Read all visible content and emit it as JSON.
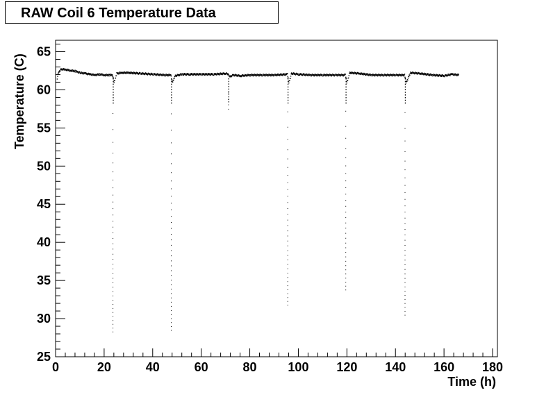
{
  "chart_data": {
    "type": "scatter",
    "title": "RAW Coil 6 Temperature Data",
    "xlabel": "Time (h)",
    "ylabel": "Temperature (C)",
    "xlim": [
      0,
      182
    ],
    "ylim": [
      25,
      66.5
    ],
    "xticks": [
      0,
      20,
      40,
      60,
      80,
      100,
      120,
      140,
      160,
      180
    ],
    "yticks": [
      25,
      30,
      35,
      40,
      45,
      50,
      55,
      60,
      65
    ],
    "grid": false,
    "legend": "none",
    "color": "#000000",
    "series": [
      {
        "x": [
          0.5,
          1,
          2,
          3,
          4,
          6,
          8,
          10,
          12,
          14,
          16,
          18,
          20,
          22,
          23.3,
          23.9,
          25,
          27,
          30,
          35,
          40,
          45,
          47.3,
          47.9,
          49,
          52,
          55,
          60,
          65,
          70,
          70.8,
          71.6,
          73,
          76,
          80,
          85,
          90,
          95.3,
          95.9,
          97,
          100,
          105,
          110,
          115,
          119.2,
          119.8,
          121,
          125,
          130,
          135,
          140,
          143.6,
          144.2,
          146,
          150,
          155,
          160,
          163,
          166
        ],
        "y": [
          61.6,
          62.3,
          62.7,
          62.8,
          62.7,
          62.6,
          62.5,
          62.3,
          62.2,
          62.1,
          62.0,
          62.1,
          62.0,
          62.0,
          62.0,
          61.0,
          62.2,
          62.3,
          62.3,
          62.2,
          62.1,
          62.0,
          62.0,
          61.0,
          61.9,
          62.1,
          62.1,
          62.1,
          62.1,
          62.2,
          62.1,
          61.8,
          62.0,
          61.9,
          62.0,
          62.0,
          62.0,
          62.1,
          61.0,
          62.2,
          62.1,
          62.0,
          62.0,
          62.0,
          62.0,
          61.0,
          62.3,
          62.2,
          62.0,
          62.0,
          62.0,
          62.0,
          61.0,
          62.3,
          62.2,
          62.0,
          61.9,
          62.1,
          62.0
        ]
      }
    ],
    "dips": [
      {
        "x": 23.5,
        "min": 28.3
      },
      {
        "x": 47.5,
        "min": 28.5
      },
      {
        "x": 71.1,
        "min": 57.5
      },
      {
        "x": 95.5,
        "min": 31.8
      },
      {
        "x": 119.4,
        "min": 33.8
      },
      {
        "x": 143.8,
        "min": 30.5
      }
    ]
  }
}
